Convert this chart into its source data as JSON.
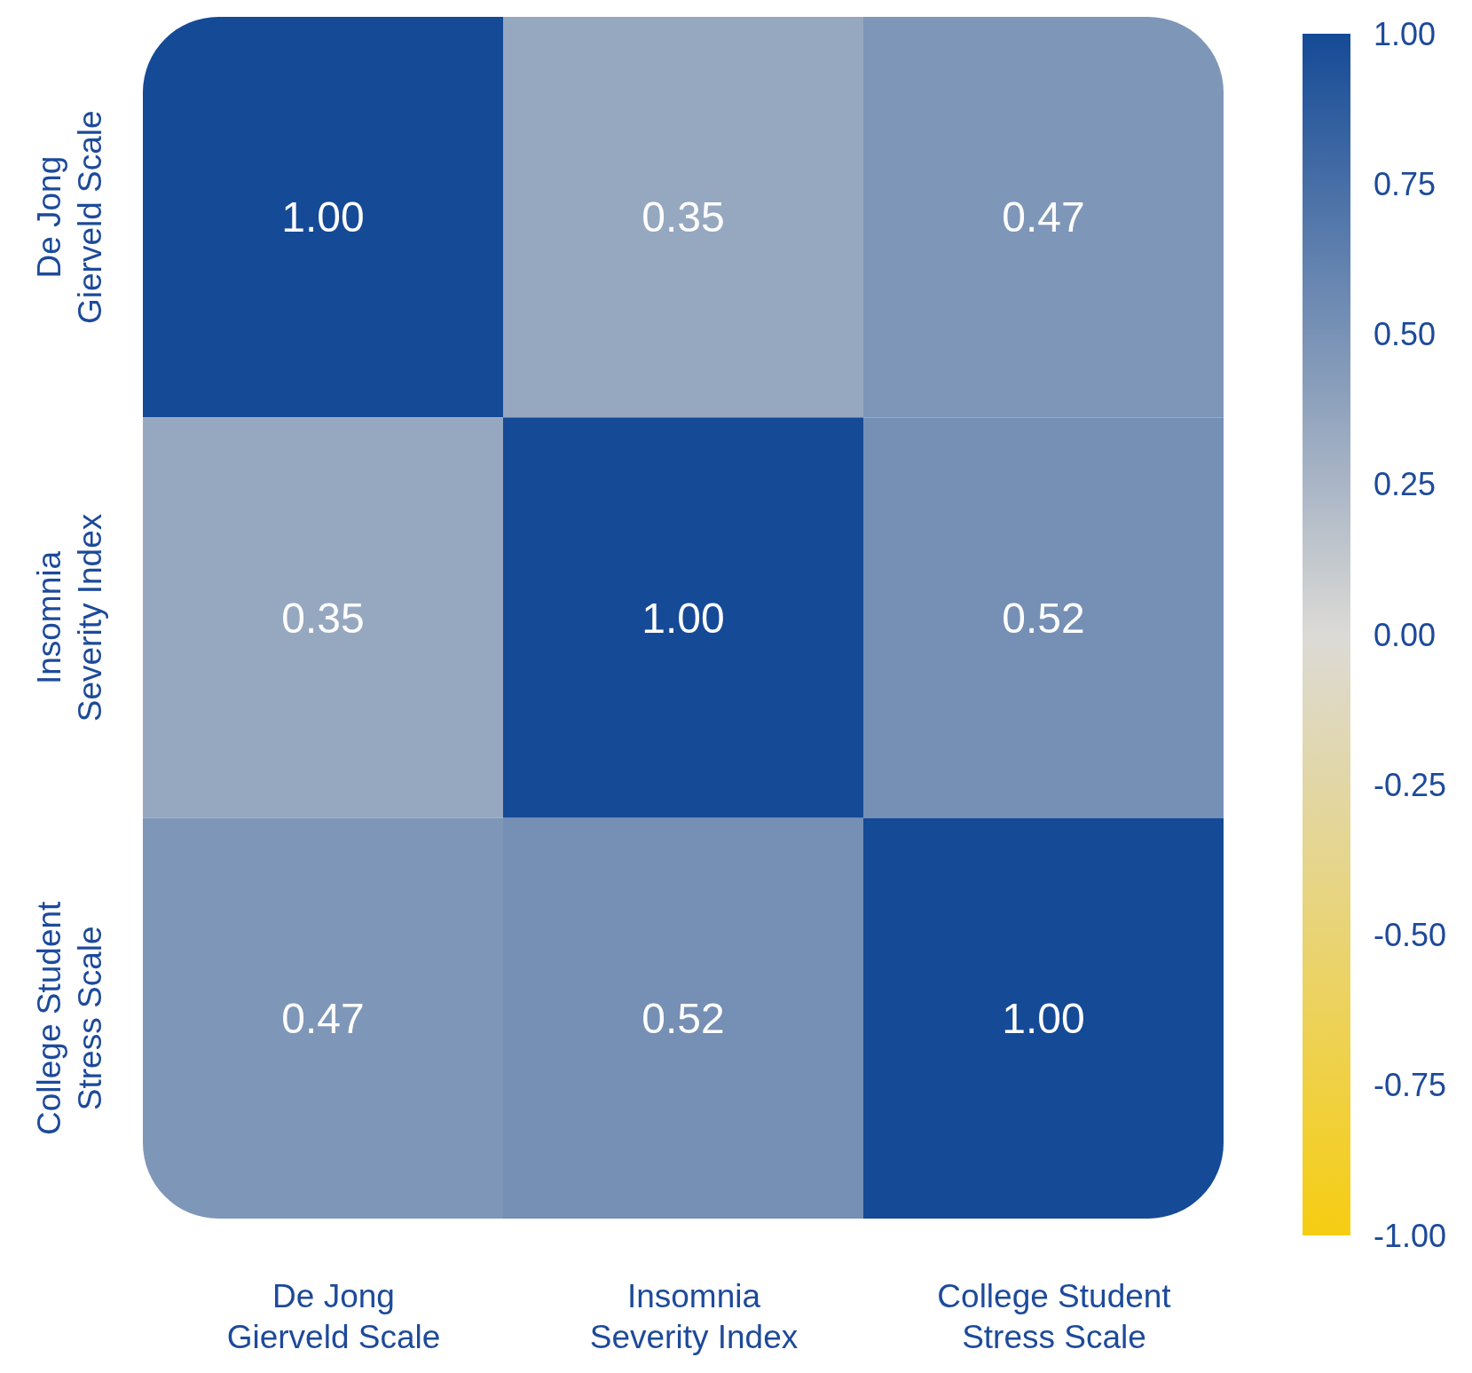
{
  "chart_data": {
    "type": "heatmap",
    "categories": [
      "De Jong Gierveld Scale",
      "Insomnia Severity Index",
      "College Student Stress Scale"
    ],
    "y_categories": [
      "De Jong Gierveld Scale",
      "Insomnia Severity Index",
      "College Student Stress Scale"
    ],
    "cells": [
      [
        1.0,
        0.35,
        0.47
      ],
      [
        0.35,
        1.0,
        0.52
      ],
      [
        0.47,
        0.52,
        1.0
      ]
    ],
    "cell_labels": [
      [
        "1.00",
        "0.35",
        "0.47"
      ],
      [
        "0.35",
        "1.00",
        "0.52"
      ],
      [
        "0.47",
        "0.52",
        "1.00"
      ]
    ],
    "clim": [
      -1,
      1
    ],
    "cticks": [
      {
        "value": 1,
        "label": "1.00"
      },
      {
        "value": 0.75,
        "label": "0.75"
      },
      {
        "value": 0.5,
        "label": "0.50"
      },
      {
        "value": 0.25,
        "label": "0.25"
      },
      {
        "value": 0,
        "label": "0.00"
      },
      {
        "value": -0.25,
        "label": "-0.25"
      },
      {
        "value": -0.5,
        "label": "-0.50"
      },
      {
        "value": -0.75,
        "label": "-0.75"
      },
      {
        "value": -1,
        "label": "-1.00"
      }
    ],
    "data_labels": true
  }
}
